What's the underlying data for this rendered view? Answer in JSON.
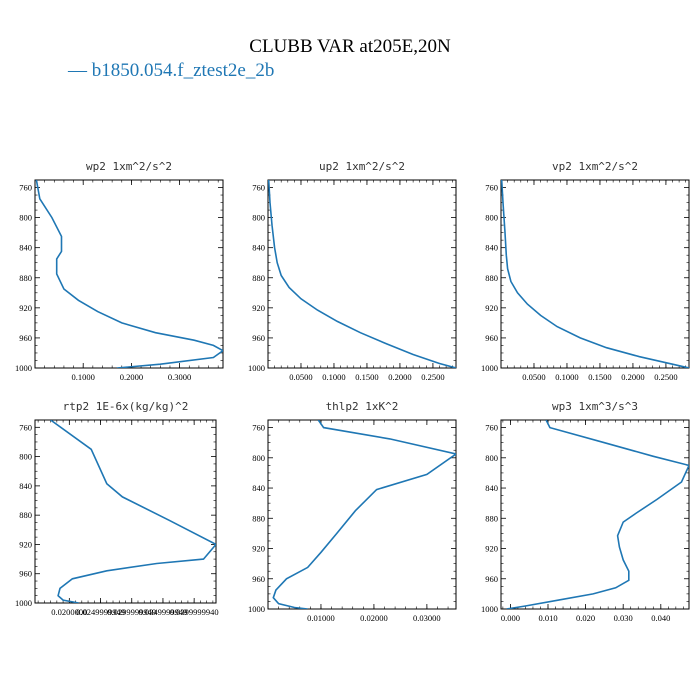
{
  "title": "CLUBB VAR at205E,20N",
  "legend": {
    "marker": "—",
    "label": "b1850.054.f_ztest2e_2b",
    "color": "#1f77b4"
  },
  "chart_data": [
    {
      "type": "line",
      "title": "wp2  1xm^2/s^2",
      "xlim": [
        0,
        0.39
      ],
      "ylim": [
        1000,
        750
      ],
      "y_inverted": true,
      "xticks": [
        0.1,
        0.2,
        0.3
      ],
      "xticklabels": [
        "0.1000",
        "0.2000",
        "0.3000"
      ],
      "yticks": [
        760,
        800,
        840,
        880,
        920,
        960,
        1000
      ],
      "yticklabels": [
        "760",
        "800",
        "840",
        "880",
        "920",
        "960",
        "1000"
      ],
      "series": [
        {
          "x": [
            0.003,
            0.01,
            0.035,
            0.055,
            0.055,
            0.045,
            0.045,
            0.06,
            0.09,
            0.13,
            0.18,
            0.25,
            0.33,
            0.37,
            0.39,
            0.37,
            0.26,
            0.17
          ],
          "y": [
            750,
            775,
            800,
            825,
            845,
            855,
            875,
            895,
            910,
            925,
            940,
            953,
            963,
            970,
            977,
            986,
            995,
            1000
          ]
        }
      ]
    },
    {
      "type": "line",
      "title": "up2  1xm^2/s^2",
      "xlim": [
        0,
        0.285
      ],
      "ylim": [
        1000,
        750
      ],
      "y_inverted": true,
      "xticks": [
        0.05,
        0.1,
        0.15,
        0.2,
        0.25
      ],
      "xticklabels": [
        "0.0500",
        "0.1000",
        "0.1500",
        "0.2000",
        "0.2500"
      ],
      "yticks": [
        760,
        800,
        840,
        880,
        920,
        960,
        1000
      ],
      "yticklabels": [
        "760",
        "800",
        "840",
        "880",
        "920",
        "960",
        "1000"
      ],
      "series": [
        {
          "x": [
            0.001,
            0.003,
            0.006,
            0.01,
            0.014,
            0.02,
            0.032,
            0.05,
            0.075,
            0.105,
            0.14,
            0.18,
            0.22,
            0.26,
            0.285
          ],
          "y": [
            750,
            780,
            810,
            840,
            860,
            877,
            893,
            908,
            923,
            938,
            953,
            968,
            982,
            994,
            1000
          ]
        }
      ]
    },
    {
      "type": "line",
      "title": "vp2  1xm^2/s^2",
      "xlim": [
        0,
        0.285
      ],
      "ylim": [
        1000,
        750
      ],
      "y_inverted": true,
      "xticks": [
        0.05,
        0.1,
        0.15,
        0.2,
        0.25
      ],
      "xticklabels": [
        "0.0500",
        "0.1000",
        "0.1500",
        "0.2000",
        "0.2500"
      ],
      "yticks": [
        760,
        800,
        840,
        880,
        920,
        960,
        1000
      ],
      "yticklabels": [
        "760",
        "800",
        "840",
        "880",
        "920",
        "960",
        "1000"
      ],
      "series": [
        {
          "x": [
            0.001,
            0.003,
            0.006,
            0.008,
            0.01,
            0.015,
            0.025,
            0.04,
            0.06,
            0.085,
            0.12,
            0.16,
            0.21,
            0.26,
            0.285
          ],
          "y": [
            750,
            780,
            820,
            850,
            868,
            885,
            900,
            915,
            930,
            945,
            960,
            973,
            985,
            995,
            1000
          ]
        }
      ]
    },
    {
      "type": "line",
      "title": "rtp2  1E-6x(kg/kg)^2",
      "xlim": [
        0.0145,
        0.0435
      ],
      "ylim": [
        1000,
        750
      ],
      "y_inverted": true,
      "xticks": [
        0.02,
        0.025,
        0.03,
        0.035,
        0.04
      ],
      "xticklabels": [
        "0.0200000",
        "0.0249999949",
        "0.0299999949",
        "0.0349999949",
        "0.0399999940"
      ],
      "yticks": [
        760,
        800,
        840,
        880,
        920,
        960,
        1000
      ],
      "yticklabels": [
        "760",
        "800",
        "840",
        "880",
        "920",
        "960",
        "1000"
      ],
      "series": [
        {
          "x": [
            0.017,
            0.0235,
            0.026,
            0.0285,
            0.036,
            0.0435,
            0.0415,
            0.034,
            0.026,
            0.0205,
            0.0185,
            0.0182,
            0.019,
            0.0215
          ],
          "y": [
            750,
            790,
            837,
            855,
            887,
            920,
            940,
            946,
            956,
            967,
            980,
            990,
            996,
            1000
          ]
        }
      ]
    },
    {
      "type": "line",
      "title": "thlp2  1xK^2",
      "xlim": [
        0,
        0.0355
      ],
      "ylim": [
        1000,
        750
      ],
      "y_inverted": true,
      "xticks": [
        0.01,
        0.02,
        0.03
      ],
      "xticklabels": [
        "0.01000",
        "0.02000",
        "0.03000"
      ],
      "yticks": [
        760,
        800,
        840,
        880,
        920,
        960,
        1000
      ],
      "yticklabels": [
        "760",
        "800",
        "840",
        "880",
        "920",
        "960",
        "1000"
      ],
      "series": [
        {
          "x": [
            0.0095,
            0.0105,
            0.023,
            0.0355,
            0.03,
            0.0205,
            0.0165,
            0.013,
            0.01,
            0.0075,
            0.0035,
            0.0015,
            0.001,
            0.002,
            0.005,
            0.0075
          ],
          "y": [
            750,
            760,
            775,
            795,
            822,
            842,
            870,
            900,
            925,
            945,
            960,
            975,
            985,
            993,
            998,
            1000
          ]
        }
      ]
    },
    {
      "type": "line",
      "title": "wp3  1xm^3/s^3",
      "xlim": [
        -0.0025,
        0.0475
      ],
      "ylim": [
        1000,
        750
      ],
      "y_inverted": true,
      "xticks": [
        0,
        0.01,
        0.02,
        0.03,
        0.04
      ],
      "xticklabels": [
        "0.000",
        "0.010",
        "0.020",
        "0.030",
        "0.040"
      ],
      "yticks": [
        760,
        800,
        840,
        880,
        920,
        960,
        1000
      ],
      "yticklabels": [
        "760",
        "800",
        "840",
        "880",
        "920",
        "960",
        "1000"
      ],
      "series": [
        {
          "x": [
            0.0095,
            0.0105,
            0.025,
            0.038,
            0.0475,
            0.0455,
            0.039,
            0.0335,
            0.03,
            0.0285,
            0.029,
            0.03,
            0.0315,
            0.0315,
            0.028,
            0.022,
            0.013,
            0.004,
            -0.001
          ],
          "y": [
            750,
            760,
            780,
            798,
            810,
            832,
            855,
            873,
            885,
            903,
            918,
            935,
            950,
            962,
            972,
            980,
            988,
            996,
            1000
          ]
        }
      ]
    }
  ]
}
